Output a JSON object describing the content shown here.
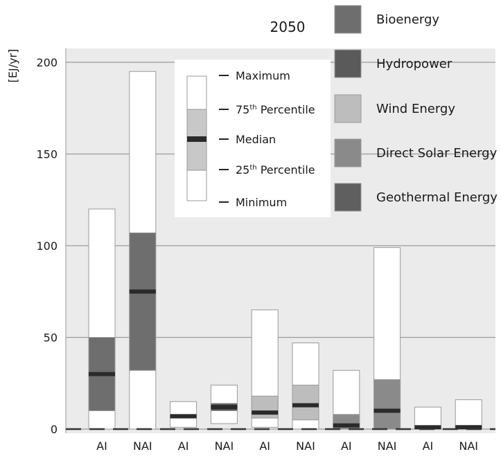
{
  "chart_data": {
    "type": "bar",
    "subtype": "box-range",
    "title": "2050",
    "ylabel": "[EJ/yr]",
    "xlabel": "",
    "ylim": [
      0,
      200
    ],
    "yticks": [
      0,
      50,
      100,
      150,
      200
    ],
    "grid": "horizontal",
    "categories": [
      "AI",
      "NAI",
      "AI",
      "NAI",
      "AI",
      "NAI",
      "AI",
      "NAI",
      "AI",
      "NAI"
    ],
    "series": [
      {
        "name": "Bioenergy",
        "color": "#6e6e6e",
        "groups": [
          {
            "category": "AI",
            "min": 0,
            "p25": 10,
            "median": 30,
            "p75": 50,
            "max": 120
          },
          {
            "category": "NAI",
            "min": 0,
            "p25": 32,
            "median": 75,
            "p75": 107,
            "max": 195
          }
        ]
      },
      {
        "name": "Hydropower",
        "color": "#5a5a5a",
        "groups": [
          {
            "category": "AI",
            "min": 1,
            "p25": 6,
            "median": 7,
            "p75": 8,
            "max": 15
          },
          {
            "category": "NAI",
            "min": 3,
            "p25": 10,
            "median": 12,
            "p75": 14,
            "max": 24
          }
        ]
      },
      {
        "name": "Wind Energy",
        "color": "#bdbdbd",
        "groups": [
          {
            "category": "AI",
            "min": 1,
            "p25": 6,
            "median": 9,
            "p75": 18,
            "max": 65
          },
          {
            "category": "NAI",
            "min": 0,
            "p25": 5,
            "median": 13,
            "p75": 24,
            "max": 47
          }
        ]
      },
      {
        "name": "Direct Solar Energy",
        "color": "#8a8a8a",
        "groups": [
          {
            "category": "AI",
            "min": 0,
            "p25": 0,
            "median": 2,
            "p75": 8,
            "max": 32
          },
          {
            "category": "NAI",
            "min": 0,
            "p25": 0,
            "median": 10,
            "p75": 27,
            "max": 99
          }
        ]
      },
      {
        "name": "Geothermal Energy",
        "color": "#5f5f5f",
        "groups": [
          {
            "category": "AI",
            "min": 0,
            "p25": 0,
            "median": 1,
            "p75": 1,
            "max": 12
          },
          {
            "category": "NAI",
            "min": 0,
            "p25": 0,
            "median": 1,
            "p75": 2,
            "max": 16
          }
        ]
      }
    ],
    "box_legend": [
      {
        "label": "Maximum",
        "sup": ""
      },
      {
        "label": "75",
        "sup": "th",
        "rest": " Percentile"
      },
      {
        "label": "Median",
        "sup": ""
      },
      {
        "label": "25",
        "sup": "th",
        "rest": " Percentile"
      },
      {
        "label": "Minimum",
        "sup": ""
      }
    ]
  }
}
